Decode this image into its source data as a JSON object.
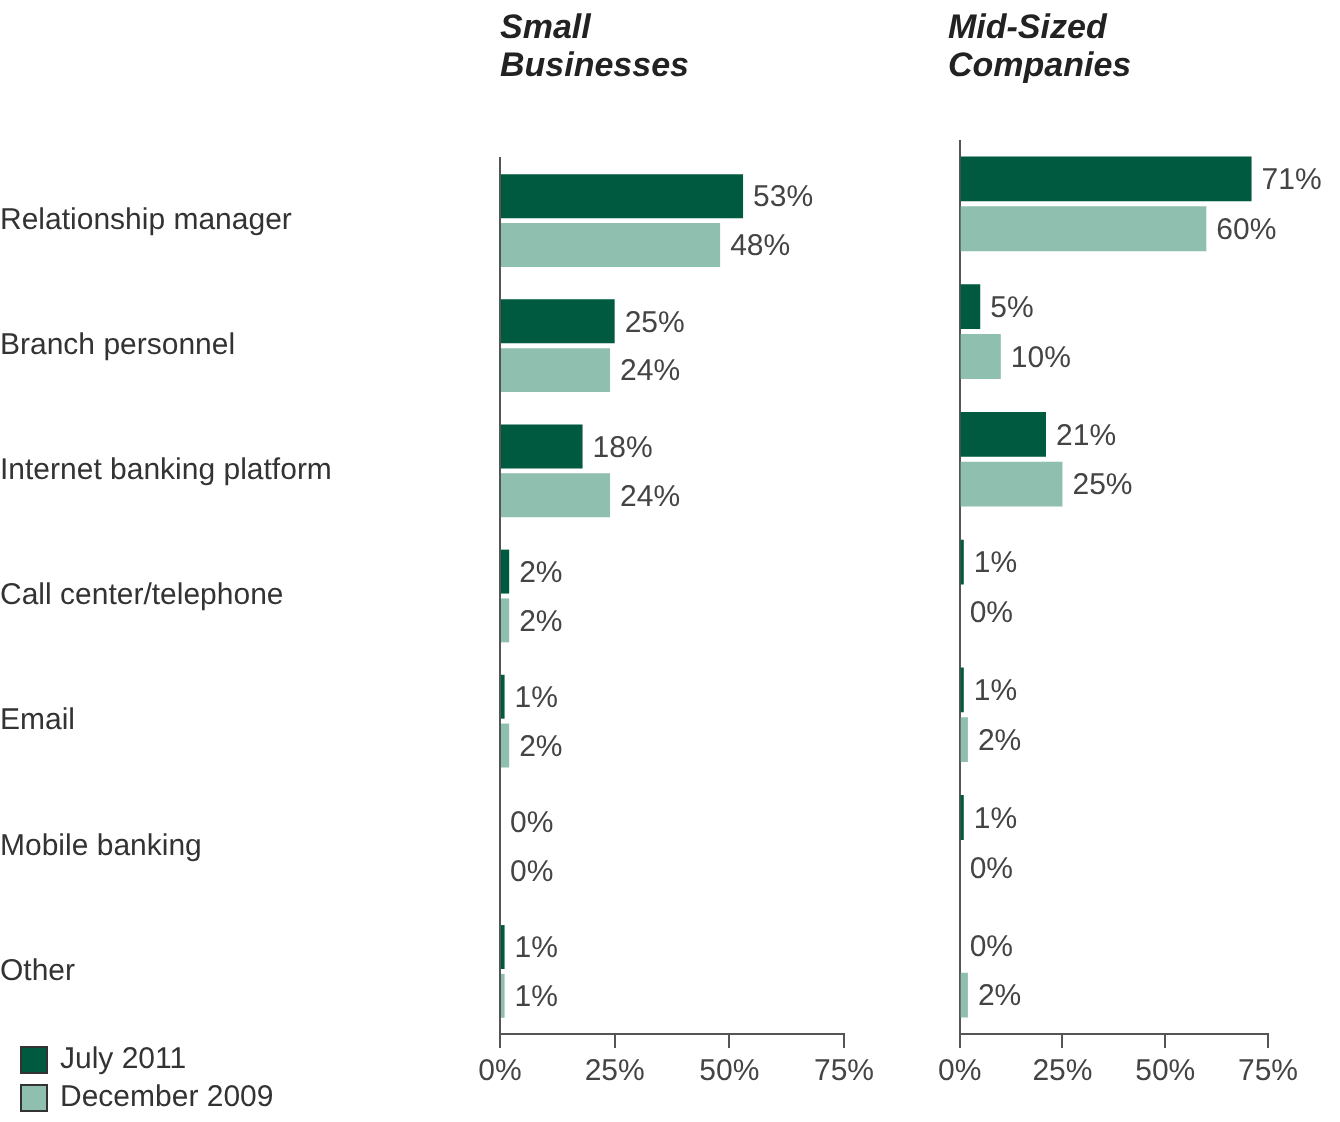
{
  "chart_data": [
    {
      "type": "bar",
      "orientation": "horizontal",
      "title": "Small Businesses",
      "categories": [
        "Relationship manager",
        "Branch personnel",
        "Internet banking platform",
        "Call center/telephone",
        "Email",
        "Mobile banking",
        "Other"
      ],
      "series": [
        {
          "name": "July 2011",
          "color": "#005a40",
          "values": [
            53,
            25,
            18,
            2,
            1,
            0,
            1
          ],
          "value_labels": [
            "53%",
            "25%",
            "18%",
            "2%",
            "1%",
            "0%",
            "1%"
          ]
        },
        {
          "name": "December 2009",
          "color": "#8fbfae",
          "values": [
            48,
            24,
            24,
            2,
            2,
            0,
            1
          ],
          "value_labels": [
            "48%",
            "24%",
            "24%",
            "2%",
            "2%",
            "0%",
            "1%"
          ]
        }
      ],
      "xlim": [
        0,
        75
      ],
      "xticks": [
        {
          "value": 0,
          "label": "0%"
        },
        {
          "value": 25,
          "label": "25%"
        },
        {
          "value": 50,
          "label": "50%"
        },
        {
          "value": 75,
          "label": "75%"
        }
      ],
      "grid": false,
      "legend": "bottom left"
    },
    {
      "type": "bar",
      "orientation": "horizontal",
      "title": "Mid-Sized Companies",
      "categories": [
        null,
        null,
        null,
        null,
        null,
        null,
        null
      ],
      "series": [
        {
          "color": "#005a40",
          "values": [
            71,
            5,
            21,
            1,
            1,
            1,
            0
          ],
          "value_labels": [
            "71%",
            "5%",
            "21%",
            "1%",
            "1%",
            "1%",
            "0%"
          ]
        },
        {
          "color": "#8fbfae",
          "values": [
            60,
            10,
            25,
            0,
            2,
            0,
            2
          ],
          "value_labels": [
            "60%",
            "10%",
            "25%",
            "0%",
            "2%",
            "0%",
            "2%"
          ]
        }
      ],
      "xlim": [
        0,
        75
      ],
      "xticks": [
        {
          "value": 0,
          "label": "0%"
        },
        {
          "value": 25,
          "label": "25%"
        },
        {
          "value": 50,
          "label": "50%"
        },
        {
          "value": 75,
          "label": "75%"
        }
      ],
      "grid": false,
      "legend": false,
      "tick_labels": "x"
    }
  ]
}
